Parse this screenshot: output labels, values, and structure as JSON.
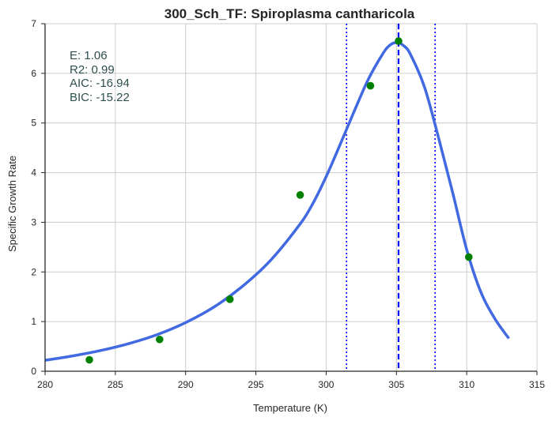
{
  "chart_data": {
    "type": "line",
    "title": "300_Sch_TF: Spiroplasma cantharicola",
    "xlabel": "Temperature (K)",
    "ylabel": "Specific Growth Rate",
    "xlim": [
      280,
      315
    ],
    "ylim": [
      0,
      7
    ],
    "xticks": [
      280,
      285,
      290,
      295,
      300,
      305,
      310,
      315
    ],
    "yticks": [
      0,
      1,
      2,
      3,
      4,
      5,
      6,
      7
    ],
    "grid": true,
    "stats": [
      "E:  1.06",
      "R2:  0.99",
      "AIC: -16.94",
      "BIC: -15.22"
    ],
    "series": [
      {
        "kind": "fit-curve",
        "color": "#4169e1",
        "x": [
          280,
          282,
          284,
          286,
          288,
          290,
          292,
          294,
          296,
          298,
          299,
          300,
          301,
          302,
          303,
          304,
          304.5,
          305,
          305.5,
          306,
          307,
          308,
          309,
          310,
          311,
          312,
          313
        ],
        "y": [
          0.22,
          0.31,
          0.42,
          0.56,
          0.74,
          0.98,
          1.29,
          1.7,
          2.22,
          2.91,
          3.35,
          3.92,
          4.57,
          5.24,
          5.88,
          6.38,
          6.56,
          6.62,
          6.56,
          6.38,
          5.72,
          4.7,
          3.6,
          2.45,
          1.6,
          1.06,
          0.66
        ]
      },
      {
        "kind": "observed-points",
        "color": "#008000",
        "x": [
          283.15,
          288.15,
          293.15,
          298.15,
          303.15,
          305.15,
          310.15
        ],
        "y": [
          0.23,
          0.64,
          1.45,
          3.55,
          5.75,
          6.65,
          2.3
        ]
      }
    ],
    "vlines": [
      {
        "x": 301.45,
        "style": "dotted",
        "color": "#0000ff"
      },
      {
        "x": 305.15,
        "style": "dashed",
        "color": "#0000ff"
      },
      {
        "x": 307.75,
        "style": "dotted",
        "color": "#0000ff"
      }
    ]
  }
}
